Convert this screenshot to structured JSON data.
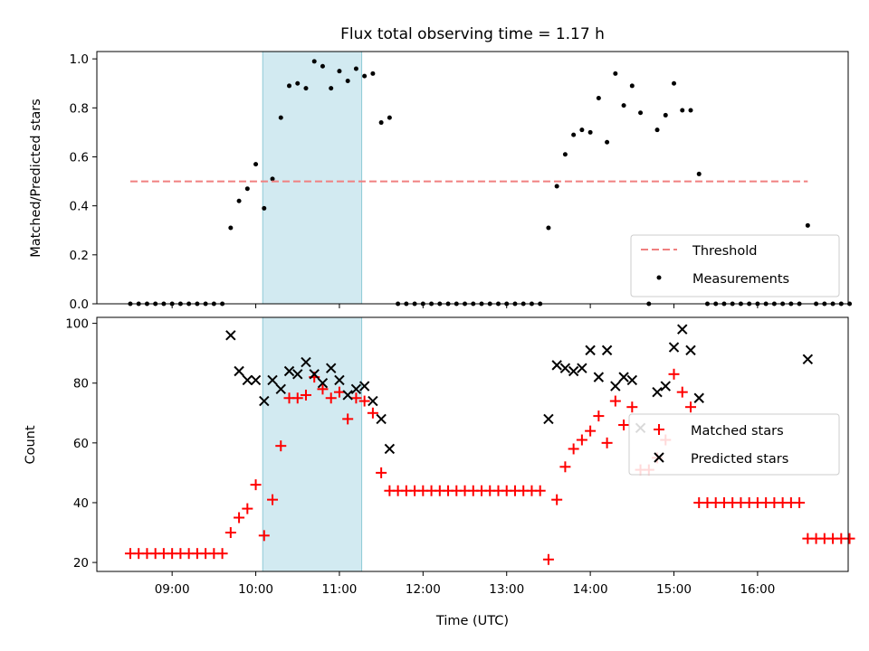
{
  "chart_data": [
    {
      "type": "scatter",
      "title": "Flux total observing time = 1.17 h",
      "xlabel": "",
      "ylabel": "Matched/Predicted stars",
      "xlim": [
        "08:06",
        "17:05"
      ],
      "ylim": [
        0,
        1.03
      ],
      "yticks": [
        "0.0",
        "0.2",
        "0.4",
        "0.6",
        "0.8",
        "1.0"
      ],
      "shaded_span": [
        "10:05",
        "11:16"
      ],
      "threshold": {
        "name": "Threshold",
        "value": 0.5,
        "x": [
          "08:30",
          "16:36"
        ],
        "color": "#f08080"
      },
      "legend": {
        "position": "lower-right",
        "entries": [
          "Threshold",
          "Measurements"
        ]
      },
      "series": [
        {
          "name": "Measurements",
          "color": "#000000",
          "points": [
            [
              "08:30",
              0
            ],
            [
              "08:36",
              0
            ],
            [
              "08:42",
              0
            ],
            [
              "08:48",
              0
            ],
            [
              "08:54",
              0
            ],
            [
              "09:00",
              0
            ],
            [
              "09:06",
              0
            ],
            [
              "09:12",
              0
            ],
            [
              "09:18",
              0
            ],
            [
              "09:24",
              0
            ],
            [
              "09:30",
              0
            ],
            [
              "09:36",
              0
            ],
            [
              "09:42",
              0.31
            ],
            [
              "09:48",
              0.42
            ],
            [
              "09:54",
              0.47
            ],
            [
              "10:00",
              0.57
            ],
            [
              "10:06",
              0.39
            ],
            [
              "10:12",
              0.51
            ],
            [
              "10:18",
              0.76
            ],
            [
              "10:24",
              0.89
            ],
            [
              "10:30",
              0.9
            ],
            [
              "10:36",
              0.88
            ],
            [
              "10:42",
              0.99
            ],
            [
              "10:48",
              0.97
            ],
            [
              "10:54",
              0.88
            ],
            [
              "11:00",
              0.95
            ],
            [
              "11:06",
              0.91
            ],
            [
              "11:12",
              0.96
            ],
            [
              "11:18",
              0.93
            ],
            [
              "11:24",
              0.94
            ],
            [
              "11:30",
              0.74
            ],
            [
              "11:36",
              0.76
            ],
            [
              "11:42",
              0
            ],
            [
              "11:48",
              0
            ],
            [
              "11:54",
              0
            ],
            [
              "12:00",
              0
            ],
            [
              "12:06",
              0
            ],
            [
              "12:12",
              0
            ],
            [
              "12:18",
              0
            ],
            [
              "12:24",
              0
            ],
            [
              "12:30",
              0
            ],
            [
              "12:36",
              0
            ],
            [
              "12:42",
              0
            ],
            [
              "12:48",
              0
            ],
            [
              "12:54",
              0
            ],
            [
              "13:00",
              0
            ],
            [
              "13:06",
              0
            ],
            [
              "13:12",
              0
            ],
            [
              "13:18",
              0
            ],
            [
              "13:24",
              0
            ],
            [
              "13:30",
              0.31
            ],
            [
              "13:36",
              0.48
            ],
            [
              "13:42",
              0.61
            ],
            [
              "13:48",
              0.69
            ],
            [
              "13:54",
              0.71
            ],
            [
              "14:00",
              0.7
            ],
            [
              "14:06",
              0.84
            ],
            [
              "14:12",
              0.66
            ],
            [
              "14:18",
              0.94
            ],
            [
              "14:24",
              0.81
            ],
            [
              "14:30",
              0.89
            ],
            [
              "14:36",
              0.78
            ],
            [
              "14:42",
              0
            ],
            [
              "14:48",
              0.71
            ],
            [
              "14:54",
              0.77
            ],
            [
              "15:00",
              0.9
            ],
            [
              "15:06",
              0.79
            ],
            [
              "15:12",
              0.79
            ],
            [
              "15:18",
              0.53
            ],
            [
              "15:24",
              0
            ],
            [
              "15:30",
              0
            ],
            [
              "15:36",
              0
            ],
            [
              "15:42",
              0
            ],
            [
              "15:48",
              0
            ],
            [
              "15:54",
              0
            ],
            [
              "16:00",
              0
            ],
            [
              "16:06",
              0
            ],
            [
              "16:12",
              0
            ],
            [
              "16:18",
              0
            ],
            [
              "16:24",
              0
            ],
            [
              "16:30",
              0
            ],
            [
              "16:36",
              0.32
            ],
            [
              "16:42",
              0
            ],
            [
              "16:48",
              0
            ],
            [
              "16:54",
              0
            ],
            [
              "17:00",
              0
            ],
            [
              "17:06",
              0
            ]
          ]
        }
      ]
    },
    {
      "type": "scatter",
      "title": "",
      "xlabel": "Time (UTC)",
      "ylabel": "Count",
      "xlim": [
        "08:06",
        "17:05"
      ],
      "ylim": [
        17,
        102
      ],
      "yticks": [
        "20",
        "40",
        "60",
        "80",
        "100"
      ],
      "xticks": [
        "09:00",
        "10:00",
        "11:00",
        "12:00",
        "13:00",
        "14:00",
        "15:00",
        "16:00"
      ],
      "shaded_span": [
        "10:05",
        "11:16"
      ],
      "legend": {
        "position": "center-right",
        "entries": [
          "Matched stars",
          "Predicted stars"
        ]
      },
      "series": [
        {
          "name": "Matched stars",
          "marker": "plus",
          "color": "#ff0000",
          "points": [
            [
              "08:30",
              23
            ],
            [
              "08:36",
              23
            ],
            [
              "08:42",
              23
            ],
            [
              "08:48",
              23
            ],
            [
              "08:54",
              23
            ],
            [
              "09:00",
              23
            ],
            [
              "09:06",
              23
            ],
            [
              "09:12",
              23
            ],
            [
              "09:18",
              23
            ],
            [
              "09:24",
              23
            ],
            [
              "09:30",
              23
            ],
            [
              "09:36",
              23
            ],
            [
              "09:42",
              30
            ],
            [
              "09:48",
              35
            ],
            [
              "09:54",
              38
            ],
            [
              "10:00",
              46
            ],
            [
              "10:06",
              29
            ],
            [
              "10:12",
              41
            ],
            [
              "10:18",
              59
            ],
            [
              "10:24",
              75
            ],
            [
              "10:30",
              75
            ],
            [
              "10:36",
              76
            ],
            [
              "10:42",
              82
            ],
            [
              "10:48",
              78
            ],
            [
              "10:54",
              75
            ],
            [
              "11:00",
              77
            ],
            [
              "11:06",
              68
            ],
            [
              "11:12",
              75
            ],
            [
              "11:18",
              74
            ],
            [
              "11:24",
              70
            ],
            [
              "11:30",
              50
            ],
            [
              "11:36",
              44
            ],
            [
              "11:42",
              44
            ],
            [
              "11:48",
              44
            ],
            [
              "11:54",
              44
            ],
            [
              "12:00",
              44
            ],
            [
              "12:06",
              44
            ],
            [
              "12:12",
              44
            ],
            [
              "12:18",
              44
            ],
            [
              "12:24",
              44
            ],
            [
              "12:30",
              44
            ],
            [
              "12:36",
              44
            ],
            [
              "12:42",
              44
            ],
            [
              "12:48",
              44
            ],
            [
              "12:54",
              44
            ],
            [
              "13:00",
              44
            ],
            [
              "13:06",
              44
            ],
            [
              "13:12",
              44
            ],
            [
              "13:18",
              44
            ],
            [
              "13:24",
              44
            ],
            [
              "13:30",
              21
            ],
            [
              "13:36",
              41
            ],
            [
              "13:42",
              52
            ],
            [
              "13:48",
              58
            ],
            [
              "13:54",
              61
            ],
            [
              "14:00",
              64
            ],
            [
              "14:06",
              69
            ],
            [
              "14:12",
              60
            ],
            [
              "14:18",
              74
            ],
            [
              "14:24",
              66
            ],
            [
              "14:30",
              72
            ],
            [
              "14:36",
              51
            ],
            [
              "14:42",
              51
            ],
            [
              "14:48",
              55
            ],
            [
              "14:54",
              61
            ],
            [
              "15:00",
              83
            ],
            [
              "15:06",
              77
            ],
            [
              "15:12",
              72
            ],
            [
              "15:18",
              40
            ],
            [
              "15:24",
              40
            ],
            [
              "15:30",
              40
            ],
            [
              "15:36",
              40
            ],
            [
              "15:42",
              40
            ],
            [
              "15:48",
              40
            ],
            [
              "15:54",
              40
            ],
            [
              "16:00",
              40
            ],
            [
              "16:06",
              40
            ],
            [
              "16:12",
              40
            ],
            [
              "16:18",
              40
            ],
            [
              "16:24",
              40
            ],
            [
              "16:30",
              40
            ],
            [
              "16:36",
              28
            ],
            [
              "16:42",
              28
            ],
            [
              "16:48",
              28
            ],
            [
              "16:54",
              28
            ],
            [
              "17:00",
              28
            ],
            [
              "17:06",
              28
            ]
          ]
        },
        {
          "name": "Predicted stars",
          "marker": "x",
          "color": "#000000",
          "points": [
            [
              "09:42",
              96
            ],
            [
              "09:48",
              84
            ],
            [
              "09:54",
              81
            ],
            [
              "10:00",
              81
            ],
            [
              "10:06",
              74
            ],
            [
              "10:12",
              81
            ],
            [
              "10:18",
              78
            ],
            [
              "10:24",
              84
            ],
            [
              "10:30",
              83
            ],
            [
              "10:36",
              87
            ],
            [
              "10:42",
              83
            ],
            [
              "10:48",
              80
            ],
            [
              "10:54",
              85
            ],
            [
              "11:00",
              81
            ],
            [
              "11:06",
              76
            ],
            [
              "11:12",
              78
            ],
            [
              "11:18",
              79
            ],
            [
              "11:24",
              74
            ],
            [
              "11:30",
              68
            ],
            [
              "11:36",
              58
            ],
            [
              "13:30",
              68
            ],
            [
              "13:36",
              86
            ],
            [
              "13:42",
              85
            ],
            [
              "13:48",
              84
            ],
            [
              "13:54",
              85
            ],
            [
              "14:00",
              91
            ],
            [
              "14:06",
              82
            ],
            [
              "14:12",
              91
            ],
            [
              "14:18",
              79
            ],
            [
              "14:24",
              82
            ],
            [
              "14:30",
              81
            ],
            [
              "14:36",
              65
            ],
            [
              "14:48",
              77
            ],
            [
              "14:54",
              79
            ],
            [
              "15:00",
              92
            ],
            [
              "15:06",
              98
            ],
            [
              "15:12",
              91
            ],
            [
              "15:18",
              75
            ],
            [
              "16:36",
              88
            ]
          ]
        }
      ]
    }
  ]
}
